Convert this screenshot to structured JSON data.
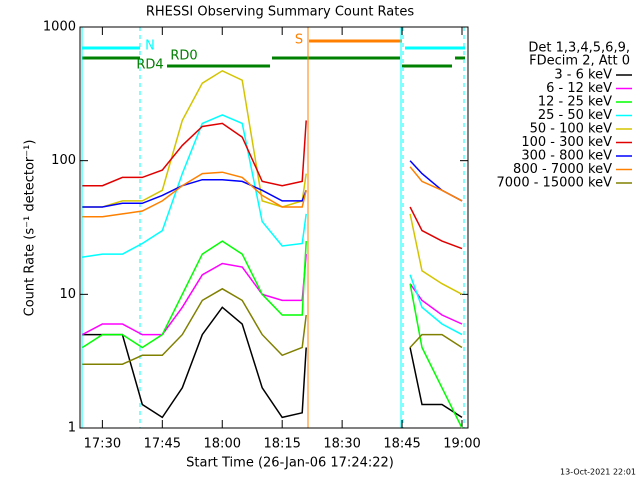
{
  "chart_data": {
    "type": "line",
    "title": "RHESSI Observing Summary Count Rates",
    "xlabel": "Start Time (26-Jan-06 17:24:22)",
    "ylabel": "Count Rate (s⁻¹ detector⁻¹)",
    "legend_title": [
      "Det 1,3,4,5,6,9,",
      "FDecim 2, Att 0"
    ],
    "footer": "13-Oct-2021 22:01",
    "annotations": [
      "N",
      "RD0",
      "RD4",
      "S"
    ],
    "yscale": "log",
    "legend": "right",
    "xlim": [
      1044.4,
      1141.5
    ],
    "ylim": [
      1,
      1000
    ],
    "xticks": [
      {
        "value": 1050,
        "label": "17:30"
      },
      {
        "value": 1065,
        "label": "17:45"
      },
      {
        "value": 1080,
        "label": "18:00"
      },
      {
        "value": 1095,
        "label": "18:15"
      },
      {
        "value": 1110,
        "label": "18:30"
      },
      {
        "value": 1125,
        "label": "18:45"
      },
      {
        "value": 1140,
        "label": "19:00"
      }
    ],
    "yticks": [
      1,
      10,
      100,
      1000
    ],
    "x": [
      1045,
      1050,
      1055,
      1060,
      1065,
      1070,
      1075,
      1080,
      1085,
      1090,
      1095,
      1100,
      1101,
      1110,
      1127,
      1130,
      1135,
      1140
    ],
    "series": [
      {
        "name": "3 - 6 keV",
        "color": "#000000",
        "values": [
          5,
          5,
          5,
          1.5,
          1.2,
          2,
          5,
          8,
          6,
          2,
          1.2,
          1.3,
          4,
          null,
          4,
          1.5,
          1.5,
          1.2
        ]
      },
      {
        "name": "6 - 12 keV",
        "color": "#ff00ff",
        "values": [
          5,
          6,
          6,
          5,
          5,
          8,
          14,
          17,
          16,
          10,
          9,
          9,
          20,
          null,
          12,
          9,
          7,
          6
        ]
      },
      {
        "name": "12 - 25 keV",
        "color": "#00ff00",
        "values": [
          4,
          5,
          5,
          4,
          5,
          10,
          20,
          25,
          20,
          10,
          7,
          7,
          25,
          null,
          12,
          4,
          2,
          1
        ]
      },
      {
        "name": "25 - 50 keV",
        "color": "#00ffff",
        "values": [
          19,
          20,
          20,
          24,
          30,
          80,
          190,
          220,
          190,
          35,
          23,
          24,
          40,
          null,
          14,
          8,
          6,
          5
        ]
      },
      {
        "name": "50 - 100 keV",
        "color": "#d4c400",
        "values": [
          45,
          45,
          50,
          50,
          60,
          200,
          380,
          470,
          400,
          50,
          45,
          50,
          80,
          null,
          40,
          15,
          12,
          10
        ]
      },
      {
        "name": "100 - 300 keV",
        "color": "#e00000",
        "values": [
          65,
          65,
          75,
          75,
          85,
          130,
          180,
          190,
          150,
          70,
          65,
          70,
          200,
          null,
          45,
          30,
          25,
          22
        ]
      },
      {
        "name": "300 - 800 keV",
        "color": "#0000ff",
        "values": [
          45,
          45,
          48,
          48,
          55,
          65,
          72,
          72,
          70,
          60,
          50,
          50,
          60,
          null,
          100,
          80,
          60,
          50
        ]
      },
      {
        "name": "800 - 7000 keV",
        "color": "#ff8000",
        "values": [
          38,
          38,
          40,
          42,
          50,
          65,
          80,
          82,
          75,
          55,
          45,
          45,
          60,
          null,
          90,
          70,
          60,
          50
        ]
      },
      {
        "name": "7000 - 15000 keV",
        "color": "#808000",
        "values": [
          3,
          3,
          3,
          3.5,
          3.5,
          5,
          9,
          11,
          9,
          5,
          3.5,
          4,
          7,
          null,
          4,
          5,
          5,
          4
        ]
      }
    ]
  }
}
